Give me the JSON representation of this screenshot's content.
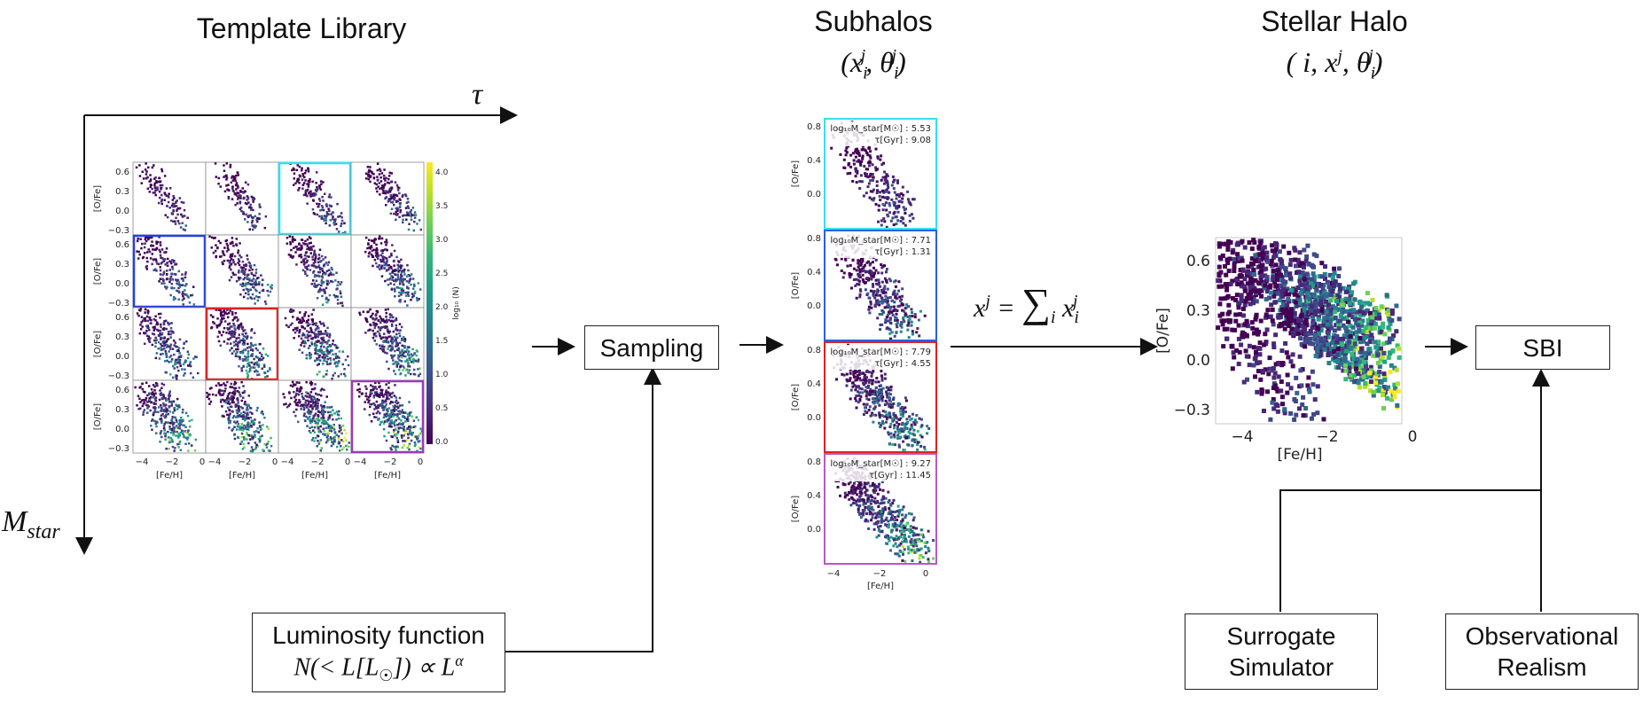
{
  "titles": {
    "template_library": "Template Library",
    "subhalos": "Subhalos",
    "subhalos_math": "(x_i^j, θ_i^j)",
    "stellar_halo": "Stellar Halo",
    "stellar_halo_math": "( i, x^j, θ_i^j)"
  },
  "axes_labels": {
    "tau": "τ",
    "mstar": "M_star"
  },
  "boxes": {
    "sampling": "Sampling",
    "sbi": "SBI",
    "luminosity_line1": "Luminosity function",
    "luminosity_line2": "N(< L[L☉]) ∝ L^α",
    "surrogate_line1": "Surrogate",
    "surrogate_line2": "Simulator",
    "realism_line1": "Observational",
    "realism_line2": "Realism"
  },
  "sum_equation": "x^j = Σ_i x_i^j",
  "grid": {
    "ylabel": "[O/Fe]",
    "xlabel": "[Fe/H]",
    "yticks": [
      "0.6",
      "0.3",
      "0.0",
      "−0.3"
    ],
    "xticks": [
      "−4",
      "−2",
      "0"
    ],
    "colorbar_label": "log₁₀ (N)",
    "colorbar_ticks": [
      "4.0",
      "3.5",
      "3.0",
      "2.5",
      "2.0",
      "1.5",
      "1.0",
      "0.5",
      "0.0"
    ],
    "highlights": [
      {
        "row": 0,
        "col": 2,
        "color": "#35e0f0"
      },
      {
        "row": 1,
        "col": 0,
        "color": "#2340e0"
      },
      {
        "row": 2,
        "col": 1,
        "color": "#e02020"
      },
      {
        "row": 3,
        "col": 3,
        "color": "#9b3bb5"
      }
    ]
  },
  "subhalo_panels": [
    {
      "mass_label": "log₁₀M_star[M☉] : 5.53",
      "tau_label": "τ[Gyr] : 9.08",
      "color": "#35e0f0"
    },
    {
      "mass_label": "log₁₀M_star[M☉] : 7.71",
      "tau_label": "τ[Gyr] : 1.31",
      "color": "#2a5fe0"
    },
    {
      "mass_label": "log₁₀M_star[M☉] : 7.79",
      "tau_label": "τ[Gyr] : 4.55",
      "color": "#e02020"
    },
    {
      "mass_label": "log₁₀M_star[M☉] : 9.27",
      "tau_label": "τ[Gyr] : 11.45",
      "color": "#b55bc0"
    }
  ],
  "subhalo_axes": {
    "ylabel": "[O/Fe]",
    "xlabel": "[Fe/H]",
    "yticks": [
      "0.8",
      "0.4",
      "0.0"
    ],
    "xticks": [
      "−4",
      "−2",
      "0"
    ]
  },
  "halo_axes": {
    "ylabel": "[O/Fe]",
    "xlabel": "[Fe/H]",
    "yticks": [
      "0.6",
      "0.3",
      "0.0",
      "−0.3"
    ],
    "xticks": [
      "−4",
      "−2",
      "0"
    ]
  }
}
